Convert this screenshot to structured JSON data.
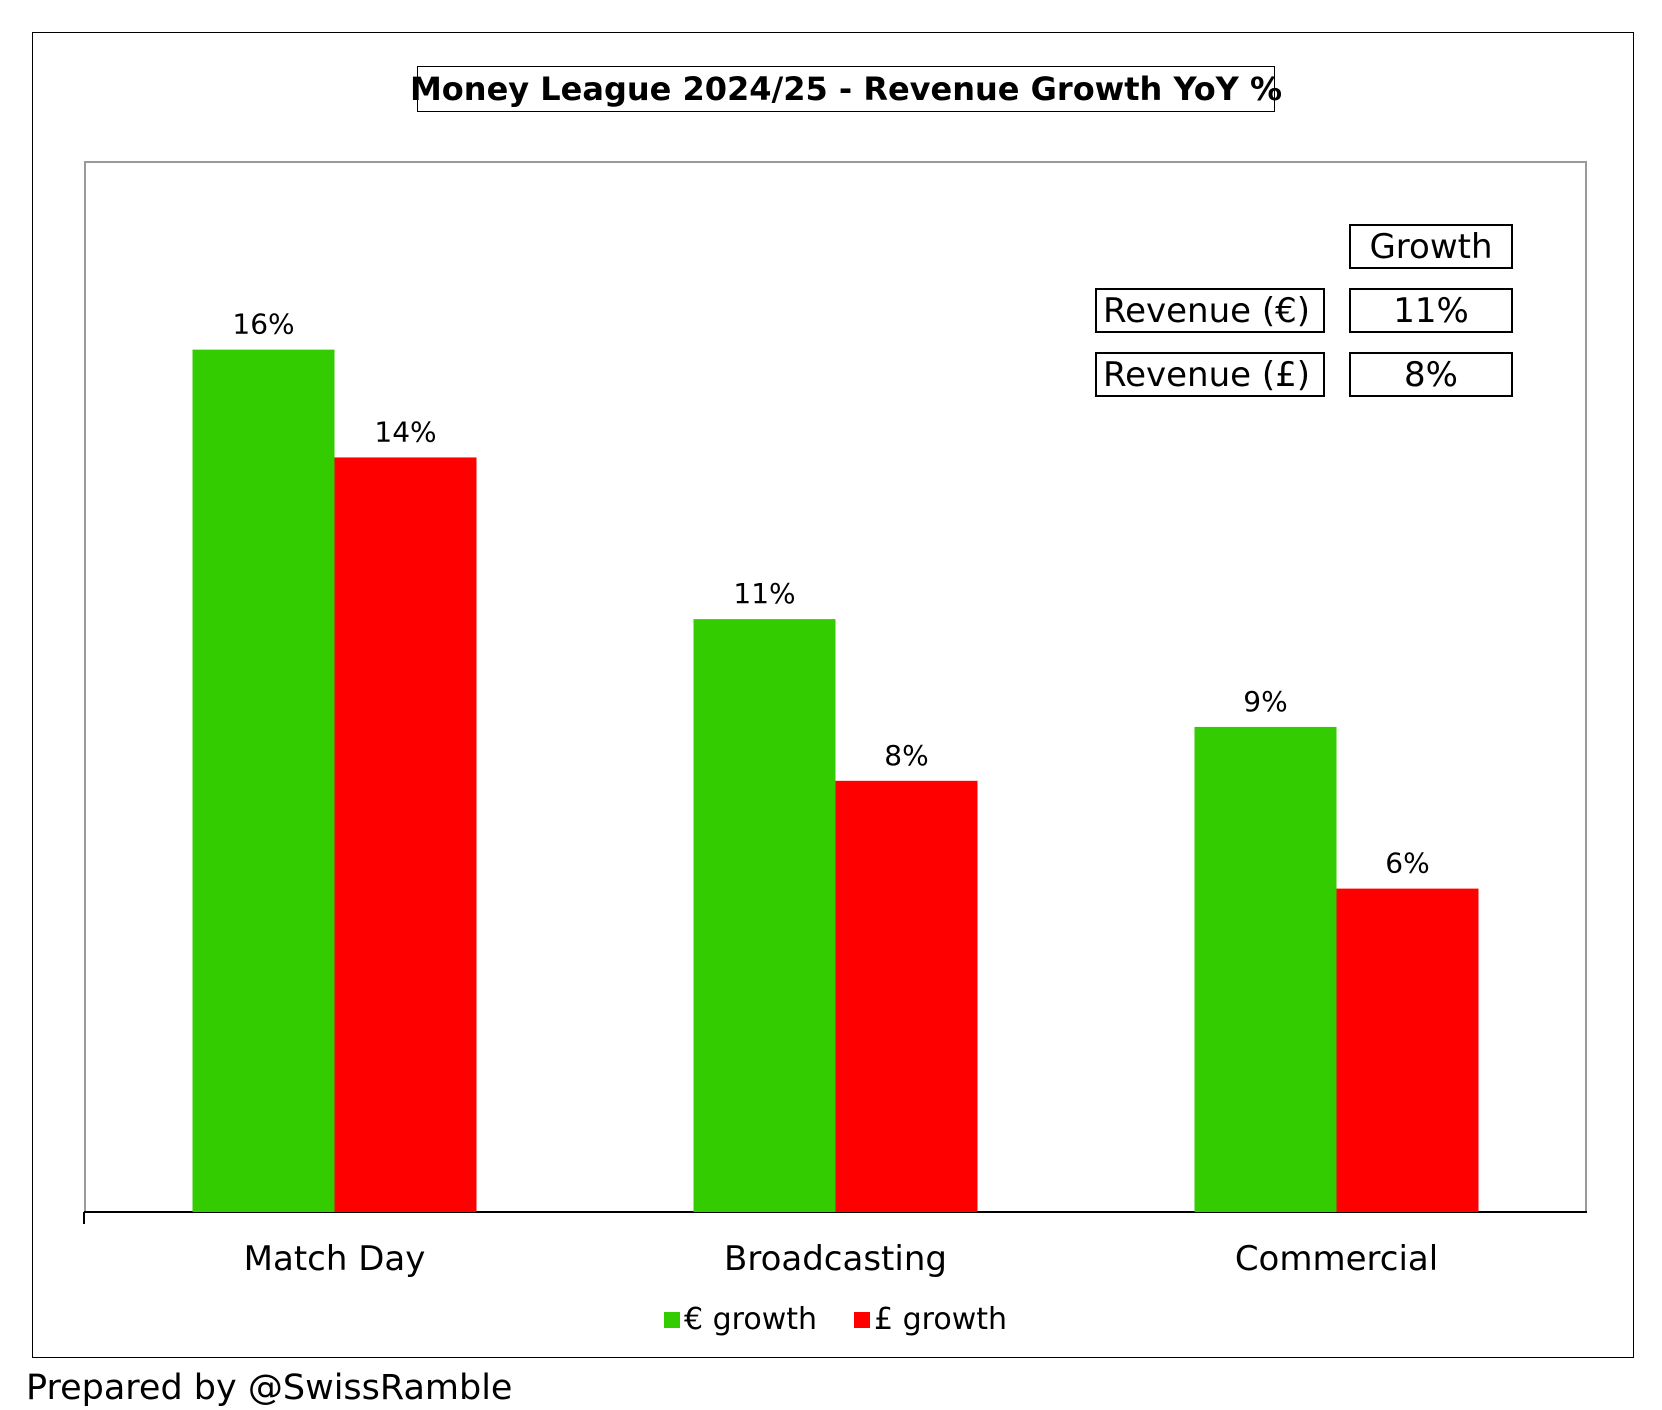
{
  "chart_data": {
    "type": "bar",
    "title": "Money League 2024/25 - Revenue Growth YoY %",
    "categories": [
      "Match Day",
      "Broadcasting",
      "Commercial"
    ],
    "series": [
      {
        "name": "€ growth",
        "values": [
          16,
          11,
          9
        ],
        "labels": [
          "16%",
          "11%",
          "9%"
        ],
        "color": "#33cc00"
      },
      {
        "name": "£ growth",
        "values": [
          14,
          8,
          6
        ],
        "labels": [
          "14%",
          "8%",
          "6%"
        ],
        "color": "#ff0000"
      }
    ],
    "ylim": [
      0,
      19.5
    ],
    "xlabel": "",
    "ylabel": "",
    "grid": false,
    "legend": "bottom-center"
  },
  "summary_table": {
    "header": "Growth",
    "rows": [
      {
        "label": "Revenue (€)",
        "value": "11%"
      },
      {
        "label": "Revenue (£)",
        "value": "8%"
      }
    ]
  },
  "credit": "Prepared by @SwissRamble"
}
